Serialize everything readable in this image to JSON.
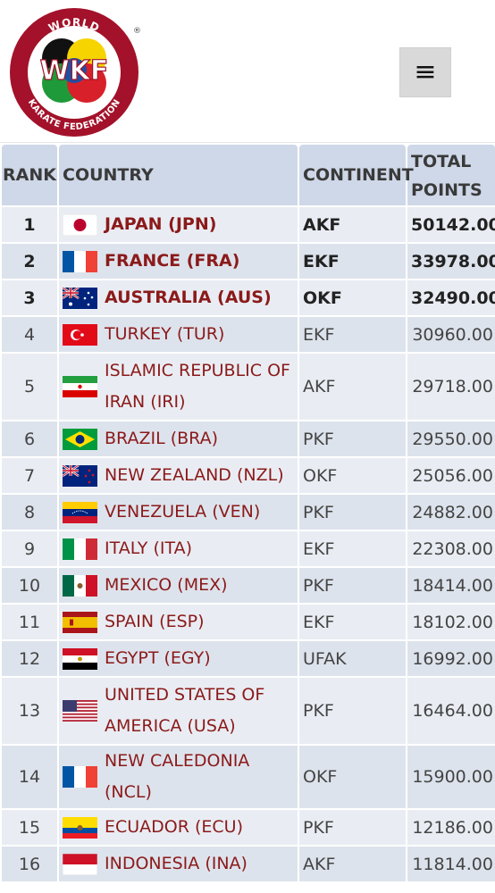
{
  "header": {
    "logo_icon": "wkf-logo",
    "logo_text": "WKF",
    "logo_ring_top": "WORLD",
    "logo_ring_bottom": "KARATE FEDERATION",
    "menu_icon": "hamburger-icon",
    "menu_glyph": "≡"
  },
  "table": {
    "columns": {
      "rank": "RANK",
      "country": "COUNTRY",
      "continent": "CONTINENT",
      "points": "TOTAL POINTS"
    },
    "rows": [
      {
        "rank": "1",
        "country": "JAPAN (JPN)",
        "continent": "AKF",
        "points": "50142.00",
        "flag": "jp"
      },
      {
        "rank": "2",
        "country": "FRANCE (FRA)",
        "continent": "EKF",
        "points": "33978.00",
        "flag": "fr"
      },
      {
        "rank": "3",
        "country": "AUSTRALIA (AUS)",
        "continent": "OKF",
        "points": "32490.00",
        "flag": "au"
      },
      {
        "rank": "4",
        "country": "TURKEY (TUR)",
        "continent": "EKF",
        "points": "30960.00",
        "flag": "tr"
      },
      {
        "rank": "5",
        "country": "ISLAMIC REPUBLIC OF IRAN (IRI)",
        "continent": "AKF",
        "points": "29718.00",
        "flag": "ir"
      },
      {
        "rank": "6",
        "country": "BRAZIL (BRA)",
        "continent": "PKF",
        "points": "29550.00",
        "flag": "br"
      },
      {
        "rank": "7",
        "country": "NEW ZEALAND (NZL)",
        "continent": "OKF",
        "points": "25056.00",
        "flag": "nz"
      },
      {
        "rank": "8",
        "country": "VENEZUELA (VEN)",
        "continent": "PKF",
        "points": "24882.00",
        "flag": "ve"
      },
      {
        "rank": "9",
        "country": "ITALY (ITA)",
        "continent": "EKF",
        "points": "22308.00",
        "flag": "it"
      },
      {
        "rank": "10",
        "country": "MEXICO (MEX)",
        "continent": "PKF",
        "points": "18414.00",
        "flag": "mx"
      },
      {
        "rank": "11",
        "country": "SPAIN (ESP)",
        "continent": "EKF",
        "points": "18102.00",
        "flag": "es"
      },
      {
        "rank": "12",
        "country": "EGYPT (EGY)",
        "continent": "UFAK",
        "points": "16992.00",
        "flag": "eg"
      },
      {
        "rank": "13",
        "country": "UNITED STATES OF AMERICA (USA)",
        "continent": "PKF",
        "points": "16464.00",
        "flag": "us"
      },
      {
        "rank": "14",
        "country": "NEW CALEDONIA (NCL)",
        "continent": "OKF",
        "points": "15900.00",
        "flag": "nc"
      },
      {
        "rank": "15",
        "country": "ECUADOR (ECU)",
        "continent": "PKF",
        "points": "12186.00",
        "flag": "ec"
      },
      {
        "rank": "16",
        "country": "INDONESIA (INA)",
        "continent": "AKF",
        "points": "11814.00",
        "flag": "id"
      }
    ]
  },
  "colors": {
    "header_bg": "#cfd8e8",
    "row_odd": "#e9edf3",
    "row_even": "#dde3ec",
    "country_link": "#8b1a1a",
    "menu_bg": "#d9d9d9"
  }
}
